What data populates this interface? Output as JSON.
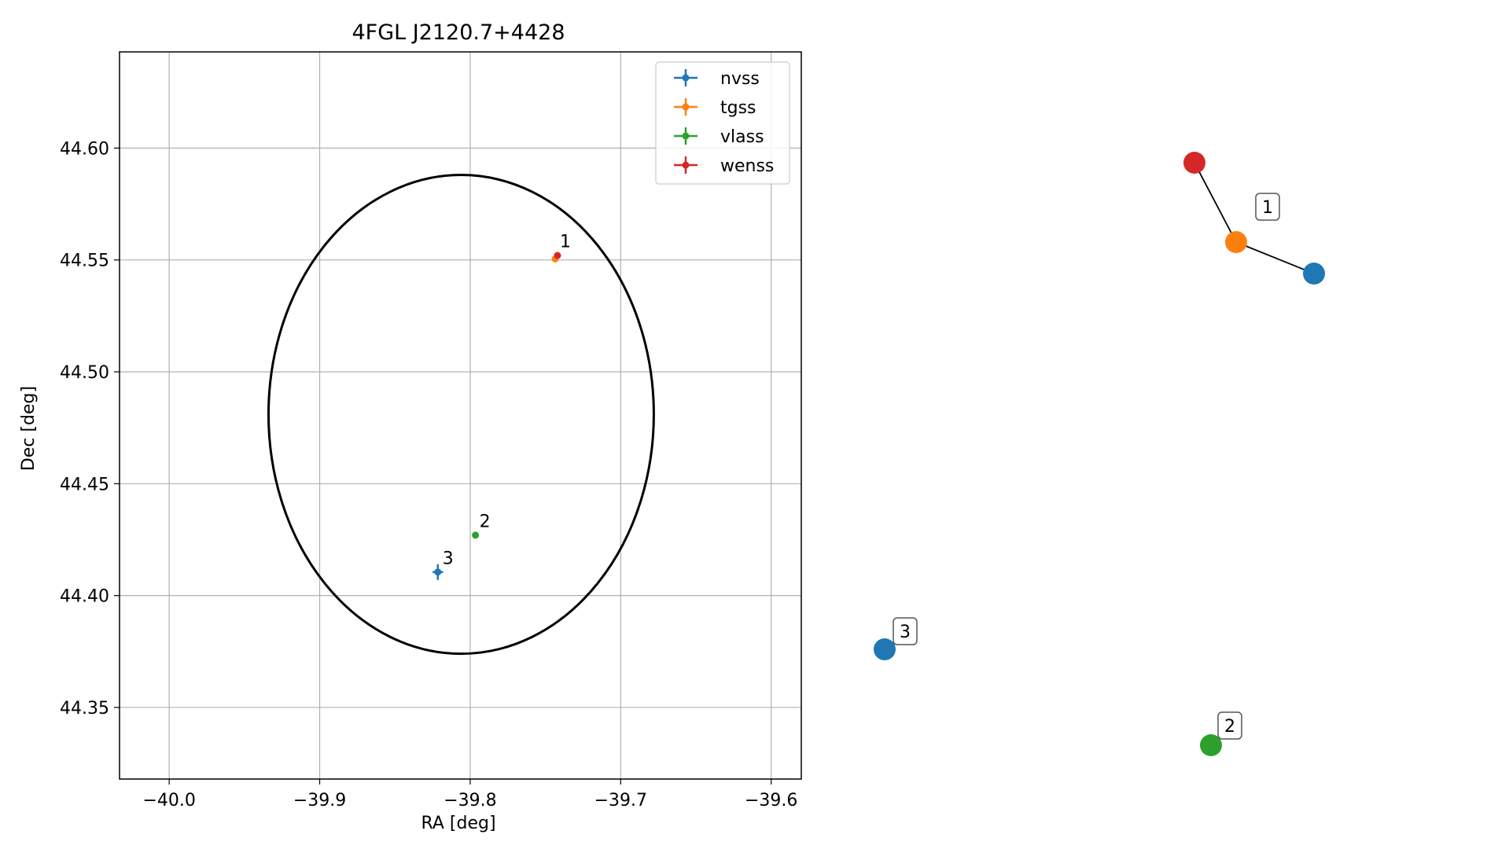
{
  "chart_data": [
    {
      "type": "scatter",
      "title": "4FGL J2120.7+4428",
      "xlabel": "RA [deg]",
      "ylabel": "Dec [deg]",
      "xlim": [
        -40.033,
        -39.58
      ],
      "ylim": [
        44.318,
        44.643
      ],
      "xticks": [
        -40.0,
        -39.9,
        -39.8,
        -39.7,
        -39.6
      ],
      "xtick_labels": [
        "−40.0",
        "−39.9",
        "−39.8",
        "−39.7",
        "−39.6"
      ],
      "yticks": [
        44.35,
        44.4,
        44.45,
        44.5,
        44.55,
        44.6
      ],
      "ytick_labels": [
        "44.35",
        "44.40",
        "44.45",
        "44.50",
        "44.55",
        "44.60"
      ],
      "grid": true,
      "legend_position": "top-right",
      "ellipse": {
        "center": [
          -39.806,
          44.481
        ],
        "semi_axis_ra": 0.128,
        "semi_axis_dec": 0.107,
        "color": "#000000"
      },
      "series": [
        {
          "name": "nvss",
          "color": "#1f77b4",
          "points": [
            {
              "x": -39.8215,
              "y": 44.4105,
              "xerr": 0.0035,
              "yerr": 0.0035
            }
          ]
        },
        {
          "name": "tgss",
          "color": "#ff7f0e",
          "points": [
            {
              "x": -39.7435,
              "y": 44.5505,
              "xerr": 0.0006,
              "yerr": 0.0006
            }
          ]
        },
        {
          "name": "vlass",
          "color": "#2ca02c",
          "points": [
            {
              "x": -39.7965,
              "y": 44.427,
              "xerr": 0.0003,
              "yerr": 0.0003
            }
          ]
        },
        {
          "name": "wenss",
          "color": "#d62728",
          "points": [
            {
              "x": -39.742,
              "y": 44.552,
              "xerr": 0.0006,
              "yerr": 0.0006
            }
          ]
        }
      ],
      "annotations": [
        {
          "text": "1",
          "x": -39.743,
          "y": 44.5535
        },
        {
          "text": "2",
          "x": -39.7965,
          "y": 44.4285
        },
        {
          "text": "3",
          "x": -39.821,
          "y": 44.412
        }
      ]
    },
    {
      "type": "network",
      "nodes": [
        {
          "id": "wenss-1",
          "color": "#d62728"
        },
        {
          "id": "tgss-1",
          "color": "#ff7f0e"
        },
        {
          "id": "nvss-1",
          "color": "#1f77b4"
        },
        {
          "id": "nvss-3",
          "color": "#1f77b4"
        },
        {
          "id": "vlass-2",
          "color": "#2ca02c"
        }
      ],
      "edges": [
        [
          "wenss-1",
          "tgss-1"
        ],
        [
          "tgss-1",
          "nvss-1"
        ]
      ],
      "labels": [
        {
          "text": "1"
        },
        {
          "text": "3"
        },
        {
          "text": "2"
        }
      ]
    }
  ]
}
